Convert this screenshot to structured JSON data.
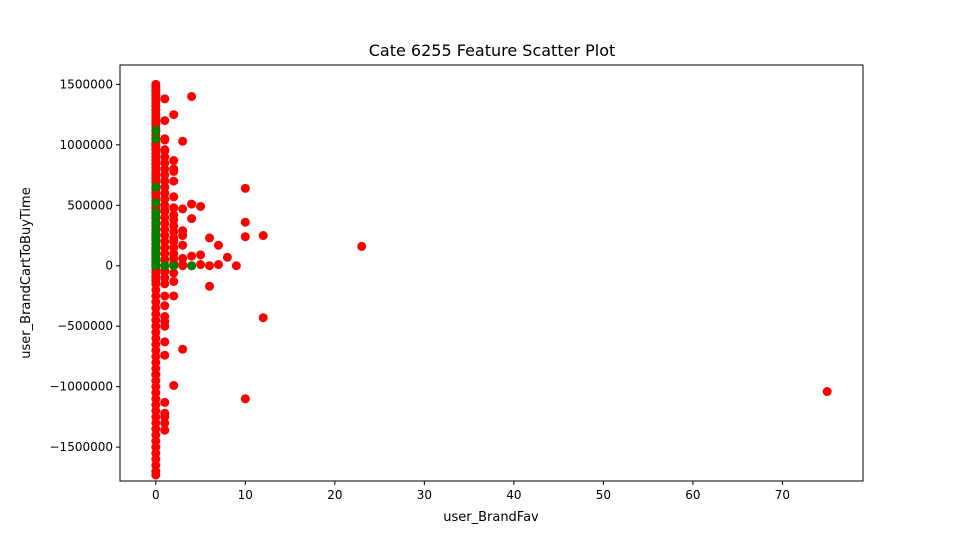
{
  "chart_data": {
    "type": "scatter",
    "title": "Cate 6255 Feature Scatter Plot",
    "xlabel": "user_BrandFav",
    "ylabel": "user_BrandCartToBuyTime",
    "xlim": [
      -4,
      79
    ],
    "ylim": [
      -1780000,
      1660000
    ],
    "xticks": [
      0,
      10,
      20,
      30,
      40,
      50,
      60,
      70
    ],
    "yticks": [
      -1500000,
      -1000000,
      -500000,
      0,
      500000,
      1000000,
      1500000
    ],
    "grid": false,
    "legend": "none",
    "colors": {
      "red": "#ff0000",
      "green": "#008000"
    },
    "series": [
      {
        "color": "red",
        "x": [
          0,
          0,
          0,
          0,
          0,
          0,
          0,
          0,
          0,
          0,
          0,
          0,
          0,
          0,
          0,
          0,
          0,
          0,
          0,
          0,
          0,
          0,
          0,
          0,
          0,
          0,
          0,
          0,
          0,
          0,
          0,
          0,
          0,
          0,
          0,
          0,
          0,
          0,
          0,
          0,
          0,
          0,
          0,
          0,
          0,
          0,
          0,
          0,
          0,
          0,
          0,
          0,
          0,
          0,
          0,
          0,
          0,
          0,
          0,
          0,
          0,
          0,
          0,
          0,
          0,
          0,
          0,
          0,
          0,
          0,
          0,
          0,
          0,
          0,
          0,
          0,
          0,
          0,
          0,
          0,
          0,
          0,
          0,
          0,
          0,
          0,
          0,
          0,
          0,
          0,
          0,
          1,
          1,
          1,
          1,
          1,
          1,
          1,
          1,
          1,
          1,
          1,
          1,
          1,
          1,
          1,
          1,
          1,
          1,
          1,
          1,
          1,
          1,
          1,
          1,
          1,
          1,
          1,
          1,
          1,
          1,
          1,
          1,
          1,
          1,
          1,
          1,
          1,
          1,
          1,
          1,
          1,
          1,
          2,
          2,
          2,
          2,
          2,
          2,
          2,
          2,
          2,
          2,
          2,
          2,
          2,
          2,
          2,
          2,
          2,
          2,
          2,
          2,
          2,
          2,
          3,
          3,
          3,
          3,
          3,
          3,
          3,
          3,
          3,
          4,
          4,
          4,
          4,
          4,
          5,
          5,
          5,
          6,
          6,
          6,
          7,
          7,
          8,
          9,
          10,
          10,
          10,
          10,
          12,
          12,
          23,
          75
        ],
        "y": [
          1500000,
          1480000,
          1460000,
          1440000,
          1410000,
          1380000,
          1350000,
          1320000,
          1290000,
          1260000,
          1230000,
          1200000,
          1170000,
          1140000,
          1110000,
          1080000,
          1050000,
          1020000,
          990000,
          960000,
          930000,
          900000,
          870000,
          840000,
          810000,
          780000,
          750000,
          720000,
          690000,
          660000,
          630000,
          600000,
          570000,
          540000,
          510000,
          480000,
          450000,
          420000,
          390000,
          360000,
          330000,
          300000,
          270000,
          240000,
          210000,
          180000,
          150000,
          120000,
          90000,
          60000,
          30000,
          0,
          -30000,
          -60000,
          -90000,
          -120000,
          -150000,
          -200000,
          -250000,
          -300000,
          -350000,
          -400000,
          -450000,
          -500000,
          -550000,
          -600000,
          -650000,
          -700000,
          -750000,
          -800000,
          -850000,
          -900000,
          -950000,
          -1000000,
          -1050000,
          -1100000,
          -1150000,
          -1200000,
          -1250000,
          -1300000,
          -1350000,
          -1400000,
          -1450000,
          -1500000,
          -1550000,
          -1600000,
          -1650000,
          -1700000,
          -1730000,
          1000000,
          -900000,
          1380000,
          1200000,
          1050000,
          950000,
          900000,
          850000,
          800000,
          750000,
          700000,
          650000,
          600000,
          550000,
          500000,
          450000,
          400000,
          350000,
          300000,
          250000,
          200000,
          150000,
          100000,
          50000,
          0,
          -50000,
          -100000,
          -150000,
          -250000,
          -330000,
          -420000,
          -460000,
          -500000,
          -630000,
          -740000,
          -1130000,
          -1220000,
          -1250000,
          -1300000,
          -1360000,
          1040000,
          960000,
          460000,
          -40000,
          1250000,
          870000,
          800000,
          780000,
          700000,
          570000,
          480000,
          420000,
          380000,
          330000,
          280000,
          230000,
          200000,
          150000,
          100000,
          60000,
          20000,
          0,
          -60000,
          -130000,
          -250000,
          -990000,
          1030000,
          470000,
          290000,
          250000,
          170000,
          60000,
          10000,
          0,
          -690000,
          1400000,
          510000,
          390000,
          80000,
          0,
          490000,
          90000,
          10000,
          230000,
          0,
          -170000,
          170000,
          10000,
          70000,
          0,
          640000,
          360000,
          240000,
          -1100000,
          250000,
          -430000,
          160000,
          -1040000
        ]
      },
      {
        "color": "green",
        "x": [
          0,
          0,
          0,
          0,
          0,
          0,
          0,
          0,
          0,
          0,
          0,
          0,
          0,
          0,
          0,
          0,
          0,
          1,
          2,
          4
        ],
        "y": [
          1120000,
          1050000,
          650000,
          520000,
          440000,
          400000,
          350000,
          300000,
          260000,
          220000,
          180000,
          140000,
          100000,
          70000,
          40000,
          10000,
          0,
          0,
          0,
          0
        ]
      }
    ]
  }
}
